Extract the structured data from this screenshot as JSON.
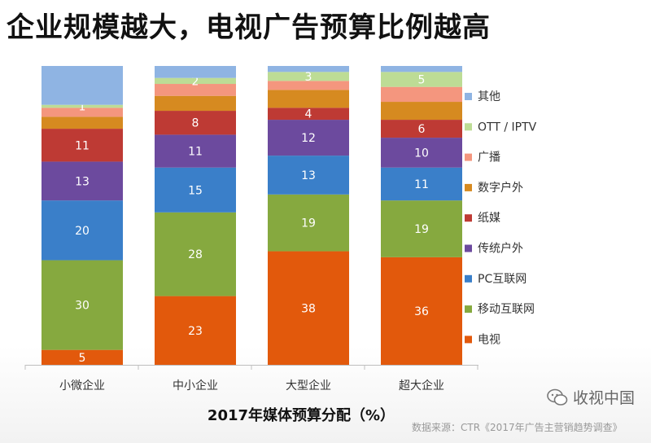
{
  "title": "企业规模越大，电视广告预算比例越高",
  "chart_data": {
    "type": "bar",
    "stacked": true,
    "xlabel": "2017年媒体预算分配（%）",
    "categories": [
      "小微企业",
      "中小企业",
      "大型企业",
      "超大企业"
    ],
    "ylim": [
      0,
      100
    ],
    "grid": false,
    "legend_position": "right",
    "series": [
      {
        "name": "电视",
        "color": "#E2590C",
        "values": [
          5,
          23,
          38,
          36
        ],
        "labels": [
          "5",
          "23",
          "38",
          "36"
        ]
      },
      {
        "name": "移动互联网",
        "color": "#86A93F",
        "values": [
          30,
          28,
          19,
          19
        ],
        "labels": [
          "30",
          "28",
          "19",
          "19"
        ]
      },
      {
        "name": "PC互联网",
        "color": "#3A7FC9",
        "values": [
          20,
          15,
          13,
          11
        ],
        "labels": [
          "20",
          "15",
          "13",
          "11"
        ]
      },
      {
        "name": "传统户外",
        "color": "#6C4A9E",
        "values": [
          13,
          11,
          12,
          10
        ],
        "labels": [
          "13",
          "11",
          "12",
          "10"
        ]
      },
      {
        "name": "纸媒",
        "color": "#BE3A34",
        "values": [
          11,
          8,
          4,
          6
        ],
        "labels": [
          "11",
          "8",
          "4",
          "6"
        ]
      },
      {
        "name": "数字户外",
        "color": "#D68A20",
        "values": [
          4,
          5,
          6,
          6
        ],
        "labels": [
          "",
          "",
          "",
          ""
        ]
      },
      {
        "name": "广播",
        "color": "#F4967E",
        "values": [
          3,
          4,
          3,
          5
        ],
        "labels": [
          "",
          "",
          "",
          ""
        ]
      },
      {
        "name": "OTT / IPTV",
        "color": "#BDDC95",
        "values": [
          1,
          2,
          3,
          5
        ],
        "labels": [
          "1",
          "2",
          "3",
          "5"
        ]
      },
      {
        "name": "其他",
        "color": "#8FB4E3",
        "values": [
          13,
          4,
          2,
          2
        ],
        "labels": [
          "",
          "",
          "",
          ""
        ]
      }
    ]
  },
  "source": "数据来源：CTR《2017年广告主营销趋势调查》",
  "watermark": "收视中国"
}
